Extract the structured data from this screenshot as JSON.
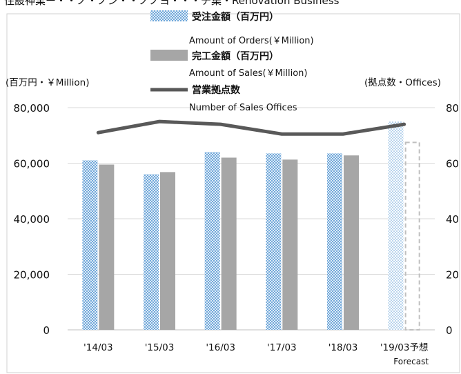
{
  "header_text": "住設神業ー・・ノ・ノン・・ノノヨ・・・チ集・Renovation Business",
  "chart_data": {
    "type": "bar",
    "title": "",
    "categories": [
      "'14/03",
      "'15/03",
      "'16/03",
      "'17/03",
      "'18/03",
      "'19/03予想"
    ],
    "category_sublabels": [
      "",
      "",
      "",
      "",
      "",
      "Forecast"
    ],
    "left_axis": {
      "label": "(百万円・￥Million)",
      "ticks": [
        "80,000",
        "60,000",
        "40,000",
        "20,000",
        "0"
      ],
      "ylim": [
        0,
        80000
      ]
    },
    "right_axis": {
      "label": "(拠点数・Offices)",
      "ticks": [
        "80",
        "60",
        "40",
        "20",
        "0"
      ],
      "ylim": [
        0,
        80
      ]
    },
    "series": [
      {
        "name": "受注金額（百万円）",
        "name_en": "Amount of Orders(￥Million)",
        "kind": "bar",
        "axis": "left",
        "values": [
          61000,
          56000,
          64000,
          63500,
          63500,
          75000
        ]
      },
      {
        "name": "完工金額（百万円）",
        "name_en": "Amount of Sales(￥Million)",
        "kind": "bar",
        "axis": "left",
        "values": [
          59500,
          56800,
          62000,
          61300,
          62800,
          67500
        ]
      },
      {
        "name": "営業拠点数",
        "name_en": "Number of Sales Offices",
        "kind": "line",
        "axis": "right",
        "values": [
          71,
          75,
          74,
          70.5,
          70.5,
          74
        ]
      }
    ],
    "grid": true,
    "legend_placement": "top-center",
    "colors": {
      "orders": "#5b9bd5",
      "sales": "#a6a6a6",
      "offices": "#595959",
      "forecast_sales_outline": "#bfbfbf"
    }
  }
}
